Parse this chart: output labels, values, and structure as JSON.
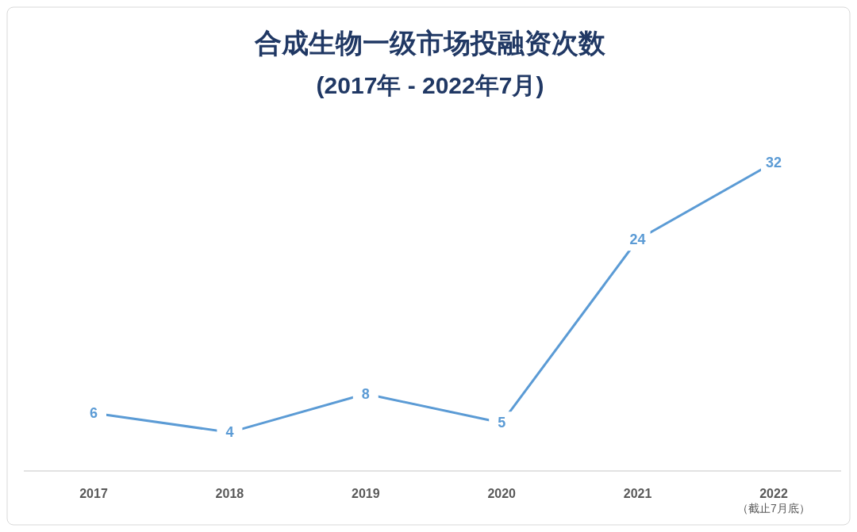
{
  "chart_data": {
    "type": "line",
    "title": "合成生物一级市场投融资次数",
    "subtitle": "(2017年 - 2022年7月)",
    "categories": [
      "2017",
      "2018",
      "2019",
      "2020",
      "2021",
      "2022"
    ],
    "series": [
      {
        "color": "#5b9bd5",
        "values": [
          6,
          4,
          8,
          5,
          24,
          32
        ]
      }
    ],
    "data_labels": true,
    "line_style": "solid",
    "marker": "none",
    "annotations": [
      "（截止7月底）"
    ]
  }
}
